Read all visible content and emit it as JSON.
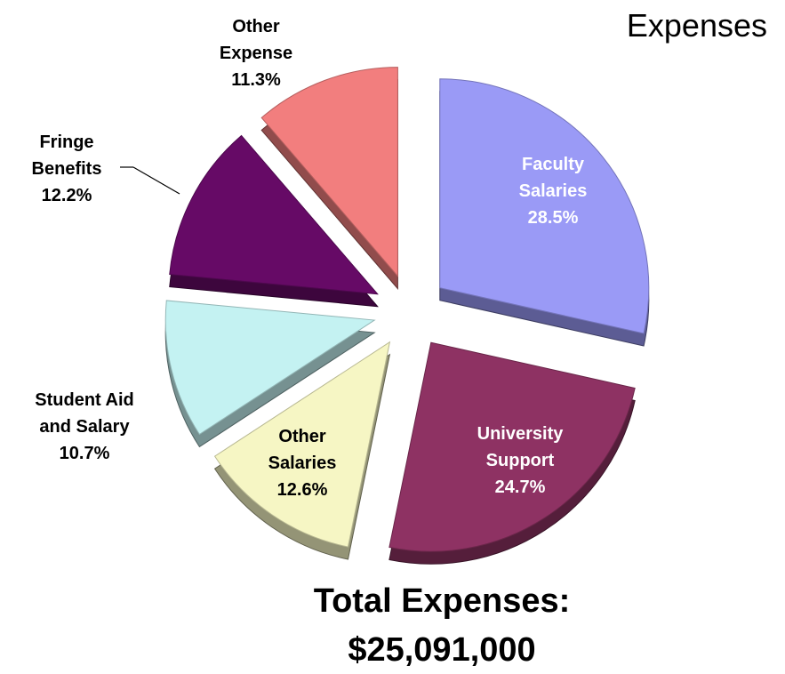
{
  "chart_data": {
    "type": "pie",
    "title": "Expenses",
    "categories": [
      "Faculty Salaries",
      "University Support",
      "Other Salaries",
      "Student Aid and Salary",
      "Fringe Benefits",
      "Other Expense"
    ],
    "values": [
      28.5,
      24.7,
      12.6,
      10.7,
      12.2,
      11.3
    ],
    "value_labels": [
      "28.5%",
      "24.7%",
      "12.6%",
      "10.7%",
      "12.2%",
      "11.3%"
    ],
    "colors": [
      "#9a9af6",
      "#8e3263",
      "#f6f6c4",
      "#c4f2f2",
      "#660a66",
      "#f27e7e"
    ],
    "annotations": [
      "Total Expenses:",
      "$25,091,000"
    ]
  }
}
